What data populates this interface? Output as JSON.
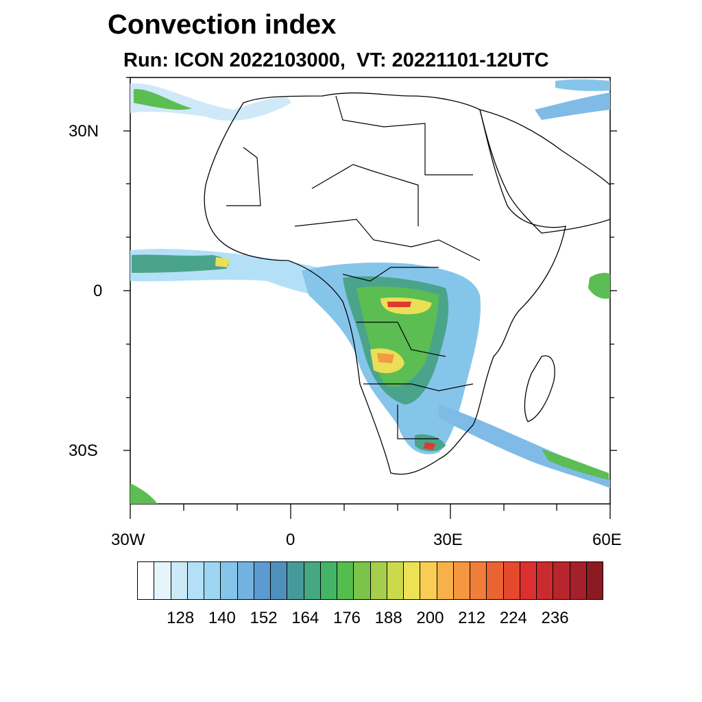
{
  "title": "Convection index",
  "subtitle": "Run: ICON 2022103000,  VT: 20221101-12UTC",
  "axes": {
    "lat_labels": [
      "30N",
      "0",
      "30S"
    ],
    "lon_labels": [
      "30W",
      "0",
      "30E",
      "60E"
    ]
  },
  "colorbar": {
    "labels": [
      "128",
      "140",
      "152",
      "164",
      "176",
      "188",
      "200",
      "212",
      "224",
      "236"
    ],
    "colors": [
      "#ffffff",
      "#e6f5fc",
      "#cce9f7",
      "#b4e0f7",
      "#9dd6f5",
      "#86c5ea",
      "#73b1e0",
      "#5b9bd2",
      "#4e8fbc",
      "#489a9a",
      "#45a882",
      "#44b566",
      "#55bd4e",
      "#7cc34a",
      "#a6ce4c",
      "#cbd94d",
      "#ede256",
      "#f8cc55",
      "#f7b14b",
      "#f59742",
      "#f07d3a",
      "#ea6333",
      "#e54a2e",
      "#dc3030",
      "#c92b2f",
      "#b7262d",
      "#a4202b",
      "#8c1a22"
    ]
  },
  "legend_field": {
    "blob_colors": {
      "light": "#cfe9f8",
      "blue": "#7fbbe6",
      "teal": "#4aa48c",
      "green": "#5cbd52",
      "yellow": "#eadf55",
      "orange": "#f29b45",
      "red": "#e0392f"
    }
  }
}
